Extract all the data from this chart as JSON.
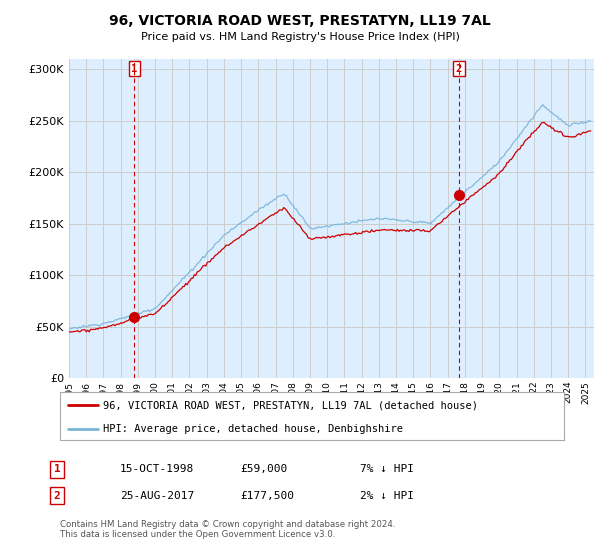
{
  "title": "96, VICTORIA ROAD WEST, PRESTATYN, LL19 7AL",
  "subtitle": "Price paid vs. HM Land Registry's House Price Index (HPI)",
  "ylabel_ticks": [
    "£0",
    "£50K",
    "£100K",
    "£150K",
    "£200K",
    "£250K",
    "£300K"
  ],
  "ytick_values": [
    0,
    50000,
    100000,
    150000,
    200000,
    250000,
    300000
  ],
  "ylim": [
    0,
    310000
  ],
  "xlim_start": 1995.0,
  "xlim_end": 2025.5,
  "sale1": {
    "date_num": 1998.79,
    "price": 59000,
    "label": "1",
    "date_str": "15-OCT-1998",
    "price_str": "£59,000",
    "rel": "7% ↓ HPI"
  },
  "sale2": {
    "date_num": 2017.65,
    "price": 177500,
    "label": "2",
    "date_str": "25-AUG-2017",
    "price_str": "£177,500",
    "rel": "2% ↓ HPI"
  },
  "hpi_color": "#7ab4d8",
  "sale_color": "#cc0000",
  "vline_color": "#cc0000",
  "grid_color": "#cccccc",
  "bg_fill_color": "#ddeeff",
  "background_color": "#ffffff",
  "legend_label_red": "96, VICTORIA ROAD WEST, PRESTATYN, LL19 7AL (detached house)",
  "legend_label_blue": "HPI: Average price, detached house, Denbighshire",
  "footer": "Contains HM Land Registry data © Crown copyright and database right 2024.\nThis data is licensed under the Open Government Licence v3.0.",
  "xtick_years": [
    1995,
    1996,
    1997,
    1998,
    1999,
    2000,
    2001,
    2002,
    2003,
    2004,
    2005,
    2006,
    2007,
    2008,
    2009,
    2010,
    2011,
    2012,
    2013,
    2014,
    2015,
    2016,
    2017,
    2018,
    2019,
    2020,
    2021,
    2022,
    2023,
    2024,
    2025
  ]
}
